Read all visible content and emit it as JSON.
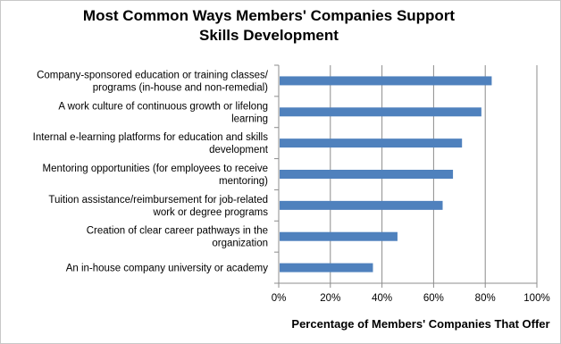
{
  "chart_data": {
    "type": "bar",
    "orientation": "horizontal",
    "title": "Most Common Ways Members' Companies Support Skills Development",
    "xlabel": "Percentage of Members' Companies That Offer",
    "ylabel": "",
    "xlim": [
      0,
      100
    ],
    "xticks": [
      "0%",
      "20%",
      "40%",
      "60%",
      "80%",
      "100%"
    ],
    "grid": true,
    "categories": [
      {
        "lines": [
          "Company-sponsored education or training classes/",
          "programs (in-house and non-remedial)"
        ],
        "value": 82.5
      },
      {
        "lines": [
          "A work culture of continuous growth or lifelong",
          "learning"
        ],
        "value": 78.5
      },
      {
        "lines": [
          "Internal e-learning platforms for education and skills",
          "development"
        ],
        "value": 71
      },
      {
        "lines": [
          "Mentoring opportunities (for employees to receive",
          "mentoring)"
        ],
        "value": 67.5
      },
      {
        "lines": [
          "Tuition assistance/reimbursement for job-related",
          "work or degree programs"
        ],
        "value": 63.5
      },
      {
        "lines": [
          "Creation of clear career pathways in the",
          "organization"
        ],
        "value": 46
      },
      {
        "lines": [
          "An in-house company university or academy"
        ],
        "value": 36.5
      }
    ],
    "colors": {
      "bar": "#4f81bd",
      "grid": "#8c8c8c",
      "axis": "#8c8c8c"
    }
  }
}
